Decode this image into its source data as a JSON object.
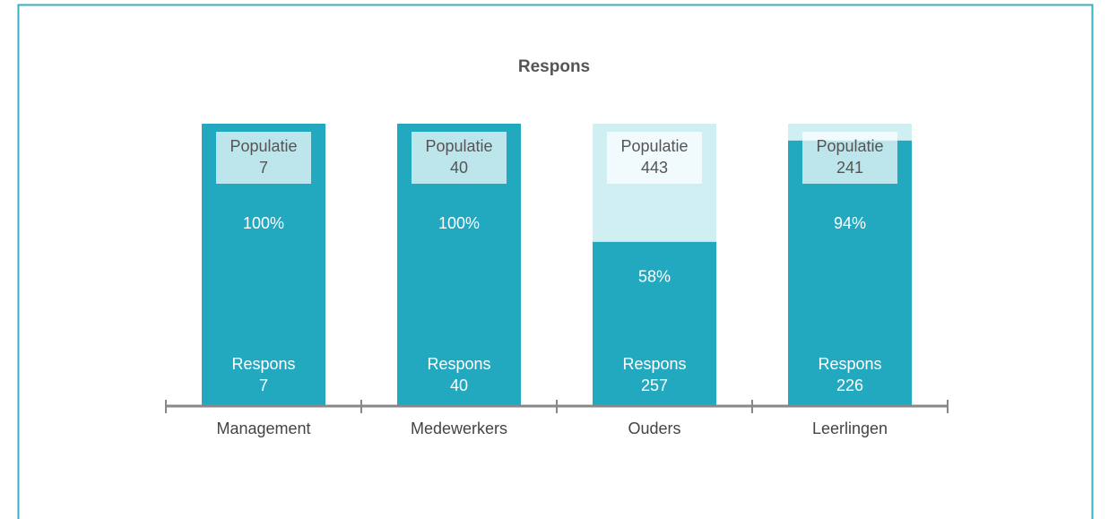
{
  "chart_data": {
    "type": "bar",
    "title": "Respons",
    "categories": [
      "Management",
      "Medewerkers",
      "Ouders",
      "Leerlingen"
    ],
    "values": [
      100,
      100,
      58,
      94
    ],
    "value_labels": [
      "100%",
      "100%",
      "58%",
      "94%"
    ],
    "ylim": [
      0,
      100
    ],
    "population": {
      "name": "Populatie",
      "color": "#d0eff3",
      "values": [
        7,
        40,
        443,
        241
      ]
    },
    "response": {
      "name": "Respons",
      "color": "#22a9bf",
      "values": [
        7,
        40,
        257,
        226
      ]
    }
  }
}
